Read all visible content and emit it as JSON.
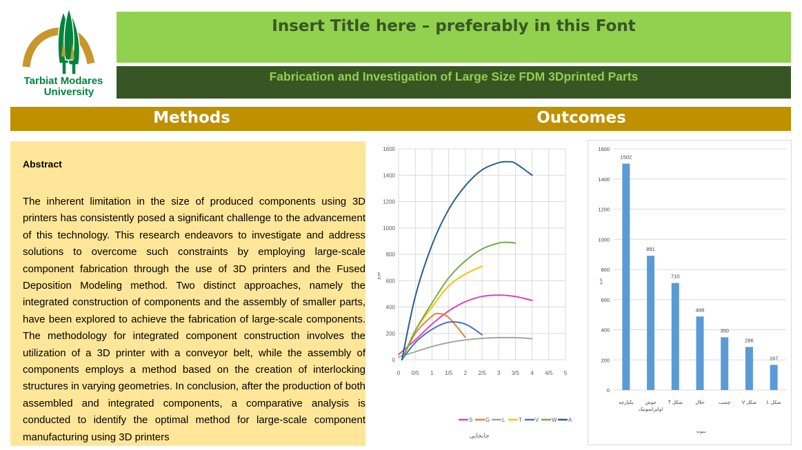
{
  "logo": {
    "text_line1": "Tarbiat Modares",
    "text_line2": "University",
    "colors": {
      "green": "#00843d",
      "gold": "#c8962a"
    }
  },
  "header": {
    "title": "Insert Title here – preferably in this Font",
    "subtitle": "Fabrication and Investigation of Large Size FDM 3Dprinted Parts"
  },
  "sections": {
    "methods": "Methods",
    "outcomes": "Outcomes"
  },
  "abstract": {
    "heading": "Abstract",
    "body": "The inherent limitation in the size of produced components using 3D printers has consistently posed a significant challenge to the advancement of this technology. This research endeavors to investigate and address solutions to overcome such constraints by employing large-scale component fabrication through the use of 3D printers and the Fused Deposition Modeling method. Two distinct approaches, namely the integrated construction of components and the assembly of smaller parts, have been explored to achieve the fabrication of large-scale components. The methodology for integrated component construction involves the utilization of a 3D printer with a conveyor belt, while the assembly of components employs a method based on the creation of interlocking structures in varying geometries. In conclusion, after the production of both assembled and integrated components, a comparative analysis is conducted to identify the optimal method for large-scale component manufacturing using 3D printers"
  },
  "colors": {
    "title_bg": "#92d050",
    "subtitle_bg": "#375623",
    "section_bar": "#bf9000",
    "abstract_bg": "#ffe699",
    "bar": "#5b9bd5"
  },
  "chart_data": [
    {
      "type": "line",
      "xlabel": "جابجایی",
      "ylabel": "نیرو",
      "xlim": [
        0,
        5
      ],
      "ylim": [
        0,
        1600
      ],
      "xticks": [
        "0",
        "0/5",
        "1",
        "1/5",
        "2",
        "2/5",
        "3",
        "3/5",
        "4",
        "4/5",
        "5"
      ],
      "yticks": [
        "0",
        "200",
        "400",
        "600",
        "800",
        "1000",
        "1200",
        "1400",
        "1600"
      ],
      "grid": true,
      "legend": "bottom",
      "series": [
        {
          "name": "S",
          "color": "#e040c0",
          "x": [
            0,
            0.5,
            1,
            1.5,
            2,
            2.5,
            3,
            3.5,
            4
          ],
          "y": [
            40,
            150,
            270,
            370,
            440,
            480,
            490,
            480,
            450
          ]
        },
        {
          "name": "G",
          "color": "#ed7d31",
          "x": [
            0.1,
            0.5,
            1,
            1.2,
            1.5,
            2
          ],
          "y": [
            0,
            200,
            330,
            350,
            320,
            170
          ]
        },
        {
          "name": "L",
          "color": "#a5a5a5",
          "x": [
            0,
            0.5,
            1,
            1.5,
            2,
            2.5,
            3,
            3.5,
            4
          ],
          "y": [
            20,
            60,
            100,
            130,
            150,
            162,
            167,
            167,
            160
          ]
        },
        {
          "name": "T",
          "color": "#ffc000",
          "x": [
            0.1,
            0.5,
            1,
            1.5,
            2,
            2.5
          ],
          "y": [
            0,
            220,
            400,
            560,
            650,
            710
          ]
        },
        {
          "name": "V",
          "color": "#4472c4",
          "x": [
            0.1,
            0.5,
            1,
            1.5,
            2,
            2.5
          ],
          "y": [
            0,
            130,
            230,
            285,
            270,
            190
          ]
        },
        {
          "name": "W",
          "color": "#70ad47",
          "x": [
            0.1,
            0.5,
            1,
            1.5,
            2,
            2.5,
            3,
            3.3,
            3.5
          ],
          "y": [
            0,
            220,
            430,
            620,
            750,
            840,
            885,
            891,
            885
          ]
        },
        {
          "name": "A",
          "color": "#255e91",
          "x": [
            0.1,
            0.5,
            1,
            1.5,
            2,
            2.5,
            3,
            3.3,
            3.5,
            4
          ],
          "y": [
            0,
            480,
            870,
            1140,
            1320,
            1440,
            1495,
            1502,
            1490,
            1400
          ]
        }
      ]
    },
    {
      "type": "bar",
      "xlabel": "نمونه",
      "ylabel": "نیرو",
      "ylim": [
        0,
        1600
      ],
      "yticks": [
        "0",
        "200",
        "400",
        "600",
        "800",
        "1000",
        "1200",
        "1400",
        "1600"
      ],
      "grid": true,
      "categories": [
        "یکپارچه",
        "جوش اولتراسونیک",
        "شکل T",
        "حلال",
        "چسب",
        "شکل V",
        "شکل L"
      ],
      "values": [
        1502,
        891,
        710,
        488,
        350,
        286,
        167
      ],
      "data_labels": [
        "1502",
        "891",
        "710",
        "488",
        "350",
        "286",
        "167"
      ]
    }
  ]
}
